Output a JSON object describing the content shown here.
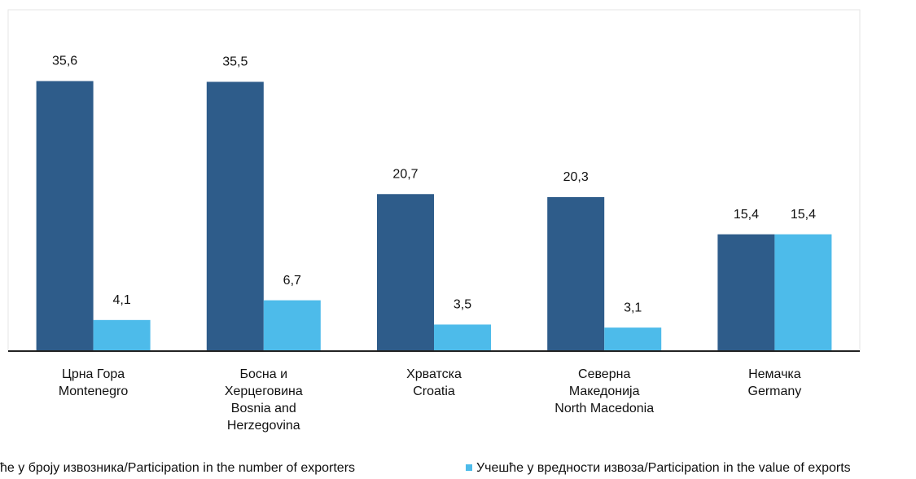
{
  "chart_data": {
    "type": "bar",
    "categories": [
      [
        "Црна Гора",
        "Montenegro"
      ],
      [
        "Босна и",
        "Херцеговина",
        "Bosnia and",
        "Herzegovina"
      ],
      [
        "Хрватска",
        "Croatia"
      ],
      [
        "Северна",
        "Македонија",
        "North Macedonia"
      ],
      [
        "Немачка",
        "Germany"
      ]
    ],
    "series": [
      {
        "name": "ће у броју извозника/Participation in the number of exporters",
        "color": "#2e5c8a",
        "values": [
          35.6,
          35.5,
          20.7,
          20.3,
          15.4
        ],
        "value_labels": [
          "35,6",
          "35,5",
          "20,7",
          "20,3",
          "15,4"
        ]
      },
      {
        "name": "Учешће у вредности извоза/Participation in the value of exports",
        "color": "#4dbbea",
        "values": [
          4.1,
          6.7,
          3.5,
          3.1,
          15.4
        ],
        "value_labels": [
          "4,1",
          "6,7",
          "3,5",
          "3,1",
          "15,4"
        ]
      }
    ],
    "ylim": [
      0,
      45
    ],
    "legend": "bottom"
  }
}
